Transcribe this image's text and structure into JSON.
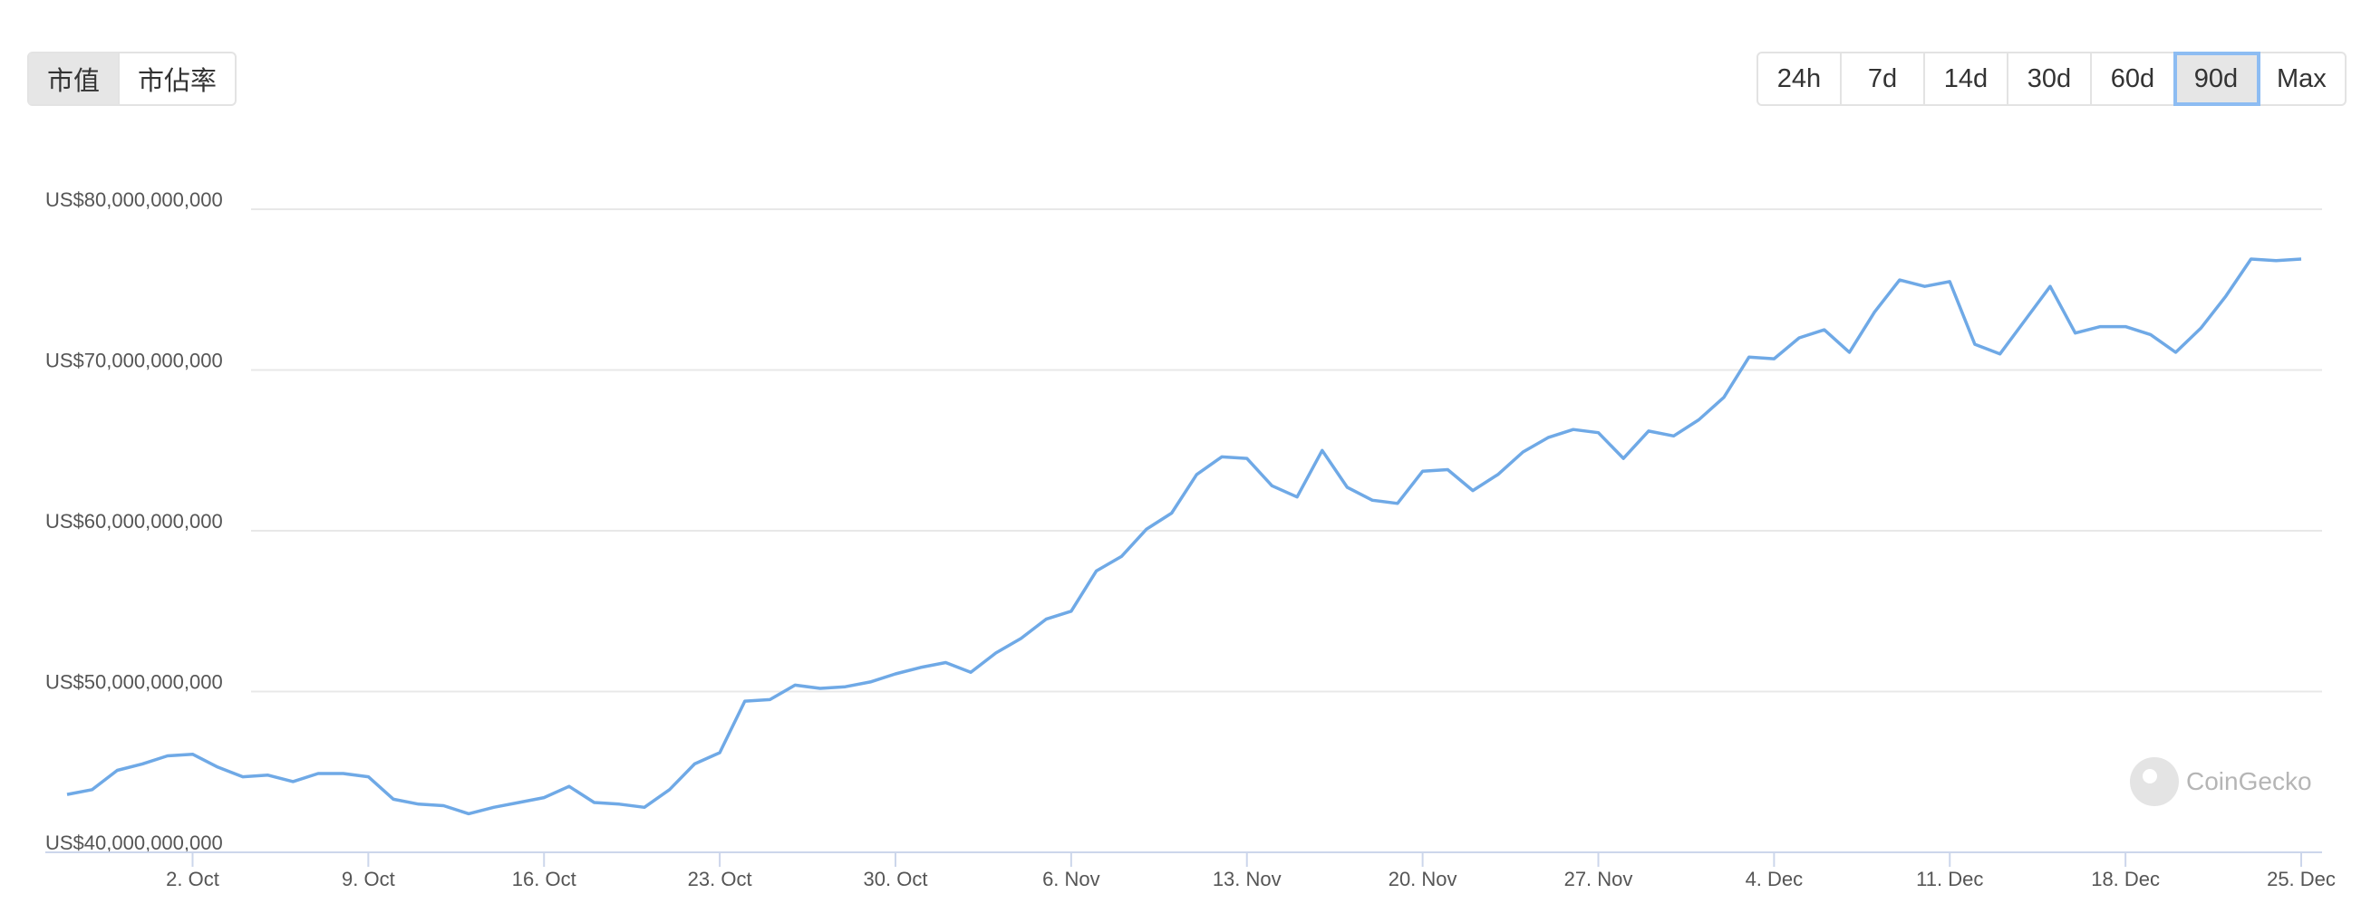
{
  "controls": {
    "metric_buttons": [
      "市值",
      "市佔率"
    ],
    "metric_active": 0,
    "range_buttons": [
      "24h",
      "7d",
      "14d",
      "30d",
      "60d",
      "90d",
      "Max"
    ],
    "range_active": 5
  },
  "watermark": "CoinGecko",
  "chart_data": {
    "type": "line",
    "color": "#6fa9e6",
    "grid": true,
    "categories": [
      null,
      null,
      null,
      null,
      null,
      "2. Oct",
      null,
      null,
      null,
      null,
      null,
      null,
      "9. Oct",
      null,
      null,
      null,
      null,
      null,
      null,
      "16. Oct",
      null,
      null,
      null,
      null,
      null,
      null,
      "23. Oct",
      null,
      null,
      null,
      null,
      null,
      null,
      "30. Oct",
      null,
      null,
      null,
      null,
      null,
      null,
      "6. Nov",
      null,
      null,
      null,
      null,
      null,
      null,
      "13. Nov",
      null,
      null,
      null,
      null,
      null,
      null,
      "20. Nov",
      null,
      null,
      null,
      null,
      null,
      null,
      "27. Nov",
      null,
      null,
      null,
      null,
      null,
      null,
      "4. Dec",
      null,
      null,
      null,
      null,
      null,
      null,
      "11. Dec",
      null,
      null,
      null,
      null,
      null,
      null,
      "18. Dec",
      null,
      null,
      null,
      null,
      null,
      null,
      "25. Dec"
    ],
    "values": [
      43600000000,
      43900000000,
      45100000000,
      45500000000,
      46000000000,
      46100000000,
      45300000000,
      44700000000,
      44800000000,
      44400000000,
      44900000000,
      44900000000,
      44700000000,
      43300000000,
      43000000000,
      42900000000,
      42400000000,
      42800000000,
      43100000000,
      43400000000,
      44100000000,
      43100000000,
      43000000000,
      42800000000,
      43900000000,
      45500000000,
      46200000000,
      49400000000,
      49500000000,
      50400000000,
      50200000000,
      50300000000,
      50600000000,
      51100000000,
      51500000000,
      51800000000,
      51200000000,
      52400000000,
      53300000000,
      54500000000,
      55000000000,
      57500000000,
      58400000000,
      60100000000,
      61100000000,
      63500000000,
      64600000000,
      64500000000,
      62800000000,
      62100000000,
      65000000000,
      62700000000,
      61900000000,
      61700000000,
      63700000000,
      63800000000,
      62500000000,
      63500000000,
      64900000000,
      65800000000,
      66300000000,
      66100000000,
      64500000000,
      66200000000,
      65900000000,
      66900000000,
      68300000000,
      70800000000,
      70700000000,
      72000000000,
      72500000000,
      71100000000,
      73600000000,
      75600000000,
      75200000000,
      75500000000,
      71600000000,
      71000000000,
      73100000000,
      75200000000,
      72300000000,
      72700000000,
      72700000000,
      72200000000,
      71100000000,
      72600000000,
      74600000000,
      76900000000,
      76800000000,
      76900000000
    ],
    "ylim": [
      40000000000,
      80000000000
    ],
    "yticks": [
      {
        "value": 40000000000,
        "label": "US$40,000,000,000"
      },
      {
        "value": 50000000000,
        "label": "US$50,000,000,000"
      },
      {
        "value": 60000000000,
        "label": "US$60,000,000,000"
      },
      {
        "value": 70000000000,
        "label": "US$70,000,000,000"
      },
      {
        "value": 80000000000,
        "label": "US$80,000,000,000"
      }
    ]
  }
}
